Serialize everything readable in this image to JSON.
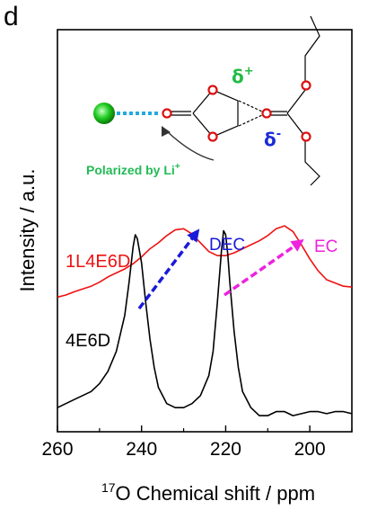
{
  "panel_label": "d",
  "colors": {
    "series_1L4E6D": "#ee1111",
    "series_4E6D": "#000000",
    "arrow_dec": "#1a1ad8",
    "arrow_ec": "#ee22dd",
    "li": "#22cc22",
    "bond": "#22aadd",
    "oxygen": "#dd1111",
    "delta_plus": "#22bb44",
    "delta_minus": "#1a2ad8",
    "polarized_text": "#22bb55"
  },
  "chart_data": {
    "type": "line",
    "xlabel_sup": "17",
    "xlabel": "O Chemical shift / ppm",
    "ylabel": "Intensity / a.u.",
    "xlim": [
      260,
      190
    ],
    "x_ticks": [
      260,
      240,
      220,
      200
    ],
    "ylim": [
      0,
      1
    ],
    "y_ticks_shown": false,
    "series": [
      {
        "name": "1L4E6D",
        "x": [
          260,
          258,
          256,
          254,
          252,
          250,
          248,
          246,
          244,
          242,
          240,
          238,
          236,
          234,
          232,
          230,
          228,
          226,
          224,
          222,
          220,
          218,
          216,
          214,
          212,
          210,
          208,
          206,
          204,
          202,
          200,
          198,
          196,
          194,
          192,
          190
        ],
        "y": [
          0.335,
          0.34,
          0.348,
          0.355,
          0.362,
          0.372,
          0.385,
          0.395,
          0.405,
          0.418,
          0.435,
          0.455,
          0.47,
          0.488,
          0.502,
          0.505,
          0.492,
          0.47,
          0.448,
          0.438,
          0.438,
          0.445,
          0.455,
          0.465,
          0.475,
          0.488,
          0.505,
          0.512,
          0.498,
          0.465,
          0.43,
          0.4,
          0.378,
          0.37,
          0.362,
          0.36
        ]
      },
      {
        "name": "4E6D",
        "x": [
          260,
          256,
          252,
          250,
          248,
          246,
          244,
          243,
          242,
          241.5,
          241,
          240,
          239,
          238,
          237,
          236,
          234,
          232,
          230,
          228,
          226,
          224,
          223,
          222,
          221,
          220.5,
          220,
          219.5,
          219,
          218,
          217,
          216,
          214,
          212,
          210,
          208,
          206,
          204,
          202,
          200,
          198,
          196,
          194,
          192,
          190
        ],
        "y": [
          0.06,
          0.08,
          0.1,
          0.12,
          0.15,
          0.2,
          0.29,
          0.37,
          0.46,
          0.49,
          0.48,
          0.42,
          0.32,
          0.23,
          0.16,
          0.11,
          0.07,
          0.06,
          0.06,
          0.07,
          0.09,
          0.14,
          0.2,
          0.32,
          0.45,
          0.5,
          0.49,
          0.44,
          0.37,
          0.25,
          0.16,
          0.1,
          0.06,
          0.04,
          0.04,
          0.05,
          0.05,
          0.04,
          0.045,
          0.05,
          0.05,
          0.045,
          0.05,
          0.05,
          0.045
        ]
      }
    ],
    "annotations": [
      {
        "text": "DEC"
      },
      {
        "text": "EC"
      }
    ]
  },
  "inset": {
    "delta_plus": "δ",
    "delta_plus_sup": "+",
    "delta_minus": "δ",
    "delta_minus_sup": "-",
    "polarized_text": "Polarized by Li",
    "polarized_sup": "+"
  }
}
